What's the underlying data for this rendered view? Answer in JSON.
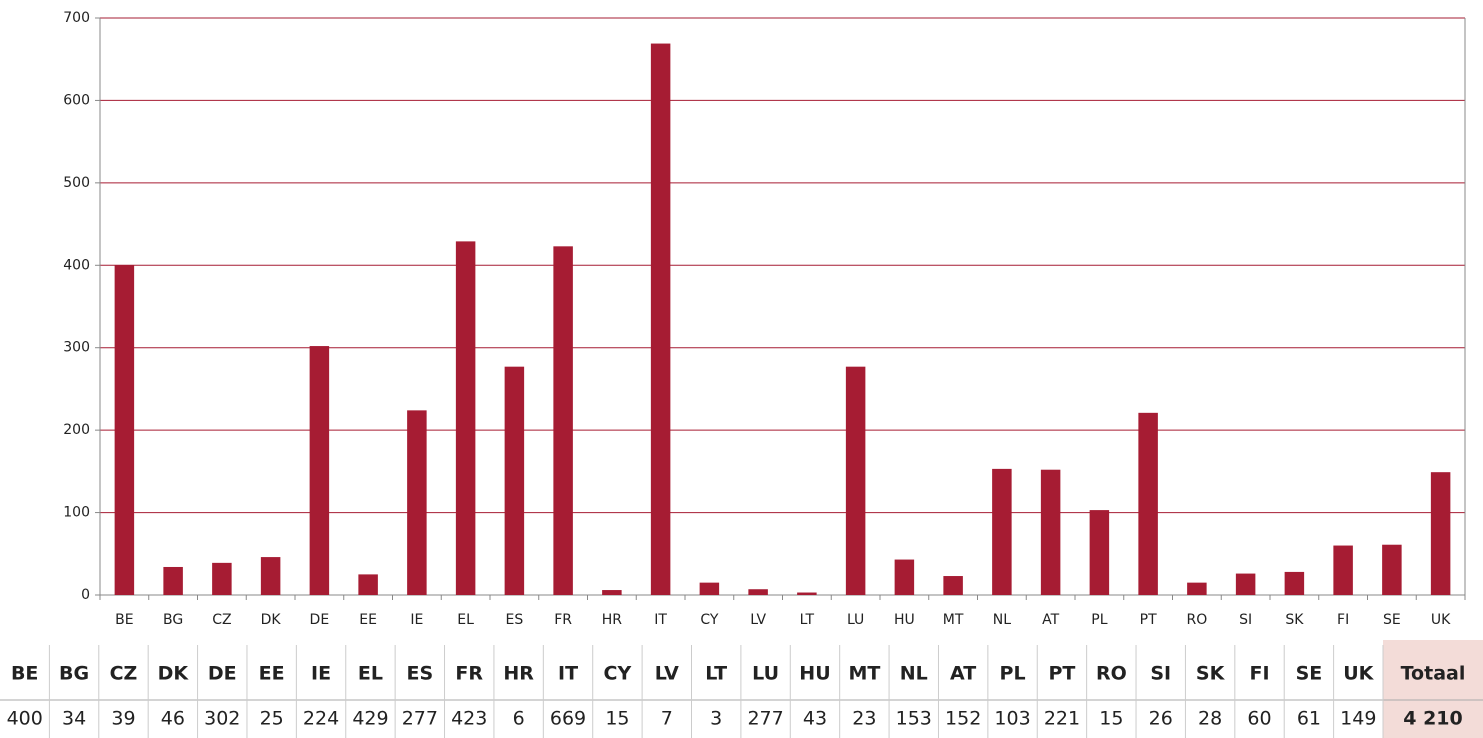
{
  "chart_data": {
    "type": "bar",
    "categories": [
      "BE",
      "BG",
      "CZ",
      "DK",
      "DE",
      "EE",
      "IE",
      "EL",
      "ES",
      "FR",
      "HR",
      "IT",
      "CY",
      "LV",
      "LT",
      "LU",
      "HU",
      "MT",
      "NL",
      "AT",
      "PL",
      "PT",
      "RO",
      "SI",
      "SK",
      "FI",
      "SE",
      "UK"
    ],
    "values": [
      400,
      34,
      39,
      46,
      302,
      25,
      224,
      429,
      277,
      423,
      6,
      669,
      15,
      7,
      3,
      277,
      43,
      23,
      153,
      152,
      103,
      221,
      15,
      26,
      28,
      60,
      61,
      149
    ],
    "color": "#a61c33",
    "grid_color": "#a61c33",
    "ylim": [
      0,
      700
    ],
    "yticks": [
      0,
      100,
      200,
      300,
      400,
      500,
      600,
      700
    ],
    "grid": true,
    "table": {
      "total_header": "Totaal",
      "total": "4 210"
    }
  }
}
